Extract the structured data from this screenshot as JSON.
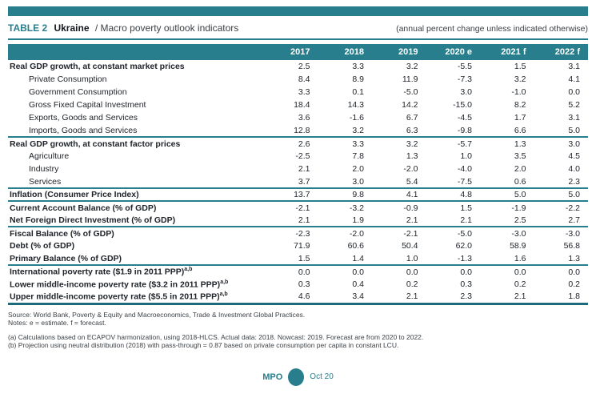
{
  "colors": {
    "accent_teal": "#287E8C",
    "accent_teal_dark": "#1D6B7A",
    "text_dark": "#20252B",
    "text_gray": "#3C4146"
  },
  "header": {
    "table_label": "TABLE 2",
    "country": "Ukraine",
    "subtitle": "/ Macro poverty outlook indicators",
    "right_note": "(annual percent change unless indicated otherwise)"
  },
  "table": {
    "columns": [
      "2017",
      "2018",
      "2019",
      "2020 e",
      "2021 f",
      "2022 f"
    ],
    "rows": [
      {
        "label": "Real GDP growth, at constant market prices",
        "bold": true,
        "indent": false,
        "values": [
          "2.5",
          "3.3",
          "3.2",
          "-5.5",
          "1.5",
          "3.1"
        ]
      },
      {
        "label": "Private Consumption",
        "bold": false,
        "indent": true,
        "values": [
          "8.4",
          "8.9",
          "11.9",
          "-7.3",
          "3.2",
          "4.1"
        ]
      },
      {
        "label": "Government Consumption",
        "bold": false,
        "indent": true,
        "values": [
          "3.3",
          "0.1",
          "-5.0",
          "3.0",
          "-1.0",
          "0.0"
        ]
      },
      {
        "label": "Gross Fixed Capital Investment",
        "bold": false,
        "indent": true,
        "values": [
          "18.4",
          "14.3",
          "14.2",
          "-15.0",
          "8.2",
          "5.2"
        ]
      },
      {
        "label": "Exports, Goods and Services",
        "bold": false,
        "indent": true,
        "values": [
          "3.6",
          "-1.6",
          "6.7",
          "-4.5",
          "1.7",
          "3.1"
        ]
      },
      {
        "label": "Imports, Goods and Services",
        "bold": false,
        "indent": true,
        "section_end": true,
        "values": [
          "12.8",
          "3.2",
          "6.3",
          "-9.8",
          "6.6",
          "5.0"
        ]
      },
      {
        "label": "Real GDP growth, at constant factor prices",
        "bold": true,
        "indent": false,
        "values": [
          "2.6",
          "3.3",
          "3.2",
          "-5.7",
          "1.3",
          "3.0"
        ]
      },
      {
        "label": "Agriculture",
        "bold": false,
        "indent": true,
        "values": [
          "-2.5",
          "7.8",
          "1.3",
          "1.0",
          "3.5",
          "4.5"
        ]
      },
      {
        "label": "Industry",
        "bold": false,
        "indent": true,
        "values": [
          "2.1",
          "2.0",
          "-2.0",
          "-4.0",
          "2.0",
          "4.0"
        ]
      },
      {
        "label": "Services",
        "bold": false,
        "indent": true,
        "section_end": true,
        "values": [
          "3.7",
          "3.0",
          "5.4",
          "-7.5",
          "0.6",
          "2.3"
        ]
      },
      {
        "label": "Inflation (Consumer Price Index)",
        "bold": true,
        "indent": false,
        "section_end": true,
        "values": [
          "13.7",
          "9.8",
          "4.1",
          "4.8",
          "5.0",
          "5.0"
        ]
      },
      {
        "label": "Current Account Balance (% of GDP)",
        "bold": true,
        "indent": false,
        "values": [
          "-2.1",
          "-3.2",
          "-0.9",
          "1.5",
          "-1.9",
          "-2.2"
        ]
      },
      {
        "label": "Net Foreign Direct Investment (% of GDP)",
        "bold": true,
        "indent": false,
        "section_end": true,
        "values": [
          "2.1",
          "1.9",
          "2.1",
          "2.1",
          "2.5",
          "2.7"
        ]
      },
      {
        "label": "Fiscal Balance (% of GDP)",
        "bold": true,
        "indent": false,
        "values": [
          "-2.3",
          "-2.0",
          "-2.1",
          "-5.0",
          "-3.0",
          "-3.0"
        ]
      },
      {
        "label": "Debt (% of GDP)",
        "bold": true,
        "indent": false,
        "values": [
          "71.9",
          "60.6",
          "50.4",
          "62.0",
          "58.9",
          "56.8"
        ]
      },
      {
        "label": "Primary Balance (% of GDP)",
        "bold": true,
        "indent": false,
        "section_end": true,
        "values": [
          "1.5",
          "1.4",
          "1.0",
          "-1.3",
          "1.6",
          "1.3"
        ]
      },
      {
        "label": "International poverty rate ($1.9 in 2011 PPP)",
        "sup": "a,b",
        "bold": true,
        "indent": false,
        "values": [
          "0.0",
          "0.0",
          "0.0",
          "0.0",
          "0.0",
          "0.0"
        ]
      },
      {
        "label": "Lower middle-income poverty rate ($3.2 in 2011 PPP)",
        "sup": "a,b",
        "bold": true,
        "indent": false,
        "values": [
          "0.3",
          "0.4",
          "0.2",
          "0.3",
          "0.2",
          "0.2"
        ]
      },
      {
        "label": "Upper middle-income poverty rate ($5.5 in 2011 PPP)",
        "sup": "a,b",
        "bold": true,
        "indent": false,
        "values": [
          "4.6",
          "3.4",
          "2.1",
          "2.3",
          "2.1",
          "1.8"
        ]
      }
    ]
  },
  "footer": {
    "source": "Source: World Bank, Poverty & Equity and Macroeconomics, Trade & Investment Global Practices.",
    "notes": "Notes: e = estimate. f = forecast.",
    "footnote_a": "(a) Calculations based on ECAPOV harmonization, using 2018-HLCS. Actual data: 2018. Nowcast: 2019. Forecast are from 2020 to 2022.",
    "footnote_b": "(b) Projection using neutral distribution (2018) with pass-through = 0.87  based on private consumption per capita in constant LCU."
  },
  "logo": {
    "mpo": "MPO",
    "date": "Oct 20"
  }
}
